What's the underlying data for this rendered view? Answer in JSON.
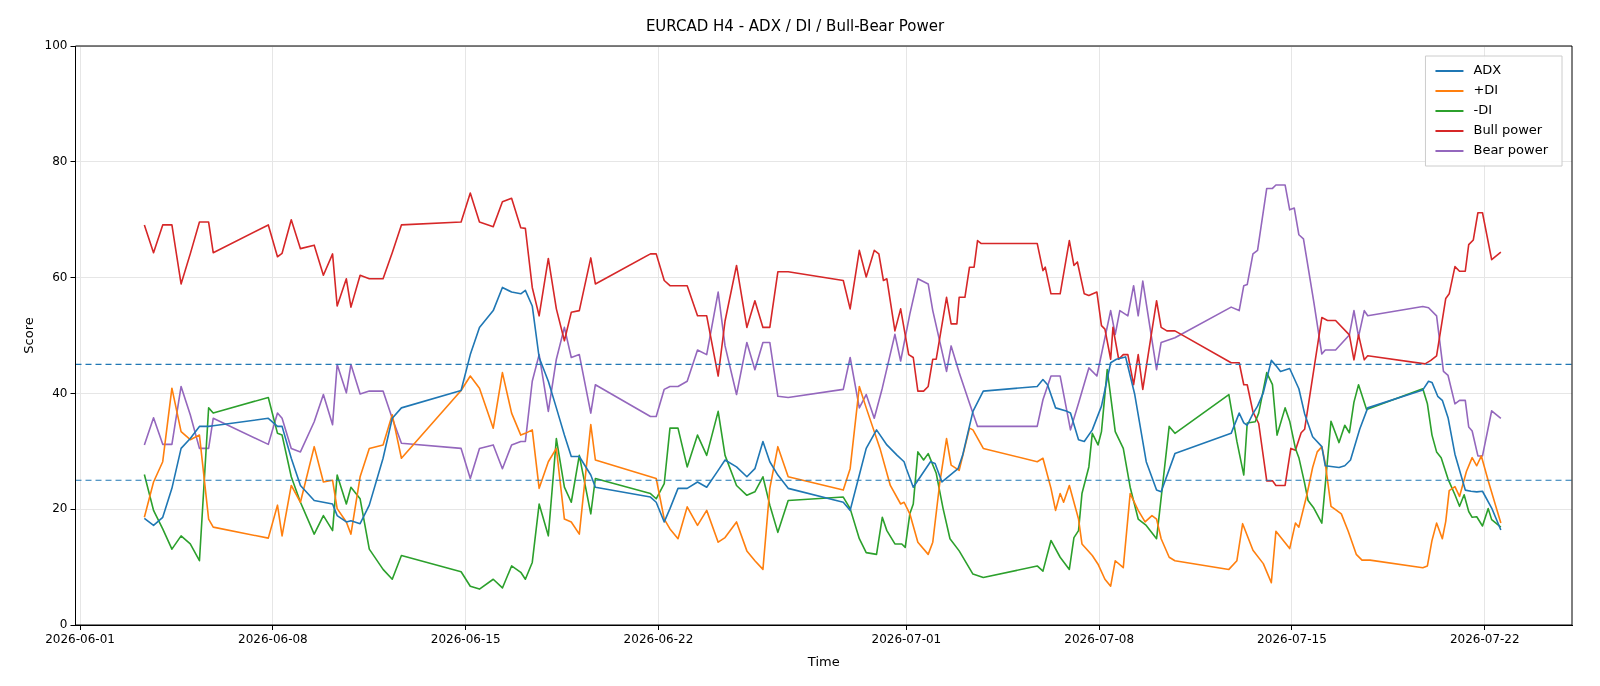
{
  "chart_data": {
    "type": "line",
    "title": "EURCAD H4 - ADX / DI / Bull-Bear Power",
    "xlabel": "Time",
    "ylabel": "Score",
    "xlim": [
      "2026-05-31T20:00",
      "2026-07-25T04:00"
    ],
    "xticks": [
      "2026-06-01",
      "2026-06-08",
      "2026-06-15",
      "2026-06-22",
      "2026-07-01",
      "2026-07-08",
      "2026-07-15",
      "2026-07-22"
    ],
    "ylim": [
      0,
      100
    ],
    "yticks": [
      0,
      20,
      40,
      60,
      80,
      100
    ],
    "grid": true,
    "legend": "top right",
    "ref_lines": [
      {
        "axis": "y",
        "value": 45,
        "color": "#1f77b4",
        "line_style": "dashed"
      },
      {
        "axis": "y",
        "value": 25,
        "color": "#1f77b4",
        "line_style": "dashed"
      }
    ],
    "series": [
      {
        "name": "ADX",
        "color": "#1f77b4",
        "x": [
          "2026-06-03T08:00",
          "2026-06-03T16:00",
          "2026-06-04T00:00",
          "2026-06-04T08:00",
          "2026-06-04T16:00",
          "2026-06-05T00:00",
          "2026-06-05T08:00",
          "2026-06-05T16:00",
          "2026-06-05T20:00",
          "2026-06-07T20:00",
          "2026-06-08T04:00",
          "2026-06-08T08:00",
          "2026-06-08T16:00",
          "2026-06-09T00:00",
          "2026-06-09T12:00",
          "2026-06-09T20:00",
          "2026-06-10T04:00",
          "2026-06-10T08:00",
          "2026-06-10T16:00",
          "2026-06-10T20:00",
          "2026-06-11T04:00",
          "2026-06-11T12:00",
          "2026-06-12T00:00",
          "2026-06-12T08:00",
          "2026-06-12T16:00",
          "2026-06-14T20:00",
          "2026-06-15T04:00",
          "2026-06-15T12:00",
          "2026-06-16T00:00",
          "2026-06-16T08:00",
          "2026-06-16T16:00",
          "2026-06-17T00:00",
          "2026-06-17T04:00",
          "2026-06-17T10:00",
          "2026-06-17T16:00",
          "2026-06-18T00:00",
          "2026-06-18T07:00",
          "2026-06-18T14:00",
          "2026-06-18T20:00",
          "2026-06-19T03:00",
          "2026-06-19T13:00",
          "2026-06-19T17:00",
          "2026-06-21T17:00",
          "2026-06-21T22:00",
          "2026-06-22T05:00",
          "2026-06-22T10:00",
          "2026-06-22T17:00",
          "2026-06-23T01:00",
          "2026-06-23T10:00",
          "2026-06-23T18:00",
          "2026-06-24T04:00",
          "2026-06-24T10:00",
          "2026-06-24T20:00",
          "2026-06-25T05:00",
          "2026-06-25T12:00",
          "2026-06-25T19:00",
          "2026-06-26T01:00",
          "2026-06-26T08:00",
          "2026-06-26T17:00",
          "2026-06-28T17:00",
          "2026-06-28T23:00",
          "2026-06-29T07:00",
          "2026-06-29T13:00",
          "2026-06-29T22:00",
          "2026-06-30T07:00",
          "2026-06-30T16:00",
          "2026-06-30T22:00",
          "2026-07-01T00:00",
          "2026-07-01T06:00",
          "2026-07-01T21:00",
          "2026-07-02T01:00",
          "2026-07-02T07:00",
          "2026-07-02T21:00",
          "2026-07-03T01:00",
          "2026-07-03T10:00",
          "2026-07-03T19:00",
          "2026-07-05T18:00",
          "2026-07-05T23:00",
          "2026-07-06T03:00",
          "2026-07-06T10:00",
          "2026-07-06T20:00",
          "2026-07-06T23:00",
          "2026-07-07T06:00",
          "2026-07-07T11:00",
          "2026-07-07T18:00",
          "2026-07-08T02:00",
          "2026-07-08T10:00",
          "2026-07-08T15:00",
          "2026-07-08T23:00",
          "2026-07-09T07:00",
          "2026-07-09T17:00",
          "2026-07-10T02:00",
          "2026-07-10T06:00",
          "2026-07-10T18:00",
          "2026-07-12T19:00",
          "2026-07-13T02:00",
          "2026-07-13T06:00",
          "2026-07-13T09:00",
          "2026-07-13T14:00",
          "2026-07-13T18:00",
          "2026-07-13T23:00",
          "2026-07-14T06:00",
          "2026-07-14T10:00",
          "2026-07-14T14:00",
          "2026-07-14T22:00",
          "2026-07-15T06:00",
          "2026-07-15T11:00",
          "2026-07-15T18:00",
          "2026-07-16T02:00",
          "2026-07-16T05:00",
          "2026-07-16T17:00",
          "2026-07-16T22:00",
          "2026-07-17T03:00",
          "2026-07-17T11:00",
          "2026-07-17T18:00",
          "2026-07-19T18:00",
          "2026-07-19T23:00",
          "2026-07-20T02:00",
          "2026-07-20T07:00",
          "2026-07-20T11:00",
          "2026-07-20T16:00",
          "2026-07-20T22:00",
          "2026-07-21T07:00",
          "2026-07-21T12:00",
          "2026-07-21T17:00",
          "2026-07-21T22:00",
          "2026-07-22T06:00",
          "2026-07-22T14:00"
        ],
        "values": [
          18.4,
          17.2,
          18.6,
          23.6,
          30.5,
          32.2,
          34.3,
          34.3,
          34.4,
          35.7,
          34.3,
          34.3,
          28.8,
          24.1,
          21.5,
          21.2,
          20.9,
          18.9,
          17.8,
          18.0,
          17.5,
          20.7,
          28.8,
          35.7,
          37.5,
          40.5,
          46.7,
          51.4,
          54.3,
          58.3,
          57.5,
          57.2,
          57.8,
          55.1,
          46.2,
          42.1,
          37.5,
          32.8,
          29.1,
          29.1,
          25.9,
          23.8,
          22.1,
          21.2,
          17.8,
          20.1,
          23.6,
          23.6,
          24.7,
          23.8,
          26.7,
          28.5,
          27.3,
          25.6,
          27.0,
          31.7,
          28.2,
          25.9,
          23.6,
          21.2,
          19.8,
          25.9,
          30.5,
          33.7,
          31.1,
          29.3,
          28.2,
          27.0,
          23.8,
          28.2,
          27.9,
          24.7,
          27.0,
          29.3,
          36.9,
          40.4,
          41.2,
          42.4,
          41.5,
          37.5,
          36.9,
          36.6,
          32.0,
          31.7,
          33.7,
          37.8,
          45.3,
          45.9,
          46.3,
          39.8,
          28.2,
          23.3,
          23.0,
          29.6,
          33.1,
          36.6,
          34.9,
          34.5,
          36.5,
          37.8,
          40.1,
          45.7,
          44.8,
          43.8,
          44.3,
          40.8,
          36.5,
          32.5,
          30.8,
          27.5,
          27.2,
          27.5,
          28.5,
          33.8,
          37.5,
          40.6,
          42.1,
          41.9,
          39.5,
          38.8,
          35.8,
          29.5,
          23.3,
          23.1,
          23.0,
          23.1,
          20.2,
          16.4
        ]
      },
      {
        "name": "+DI",
        "color": "#ff7f0e",
        "x": [
          "2026-06-03T08:00",
          "2026-06-03T16:00",
          "2026-06-04T00:00",
          "2026-06-04T08:00",
          "2026-06-04T16:00",
          "2026-06-05T00:00",
          "2026-06-05T08:00",
          "2026-06-05T16:00",
          "2026-06-05T20:00",
          "2026-06-07T20:00",
          "2026-06-08T04:00",
          "2026-06-08T08:00",
          "2026-06-08T16:00",
          "2026-06-09T00:00",
          "2026-06-09T12:00",
          "2026-06-09T20:00",
          "2026-06-10T04:00",
          "2026-06-10T08:00",
          "2026-06-10T16:00",
          "2026-06-10T20:00",
          "2026-06-11T04:00",
          "2026-06-11T12:00",
          "2026-06-12T00:00",
          "2026-06-12T08:00",
          "2026-06-12T16:00",
          "2026-06-14T20:00",
          "2026-06-15T04:00",
          "2026-06-15T12:00",
          "2026-06-16T00:00",
          "2026-06-16T08:00",
          "2026-06-16T16:00",
          "2026-06-17T00:00",
          "2026-06-17T04:00",
          "2026-06-17T10:00",
          "2026-06-17T16:00",
          "2026-06-18T00:00",
          "2026-06-18T07:00",
          "2026-06-18T14:00",
          "2026-06-18T20:00",
          "2026-06-19T03:00",
          "2026-06-19T13:00",
          "2026-06-19T17:00",
          "2026-06-21T17:00",
          "2026-06-21T22:00",
          "2026-06-22T05:00",
          "2026-06-22T10:00",
          "2026-06-22T17:00",
          "2026-06-23T01:00",
          "2026-06-23T10:00",
          "2026-06-23T18:00",
          "2026-06-24T04:00",
          "2026-06-24T10:00",
          "2026-06-24T20:00",
          "2026-06-25T05:00",
          "2026-06-25T12:00",
          "2026-06-25T19:00",
          "2026-06-26T01:00",
          "2026-06-26T08:00",
          "2026-06-26T17:00",
          "2026-06-28T17:00",
          "2026-06-28T23:00",
          "2026-06-29T07:00",
          "2026-06-29T13:00",
          "2026-06-30T01:00",
          "2026-06-30T10:00",
          "2026-06-30T19:00",
          "2026-06-30T22:00",
          "2026-07-01T03:00",
          "2026-07-01T10:00",
          "2026-07-01T19:00",
          "2026-07-01T23:00",
          "2026-07-02T05:00",
          "2026-07-02T11:00",
          "2026-07-02T15:00",
          "2026-07-02T22:00",
          "2026-07-03T07:00",
          "2026-07-03T10:00",
          "2026-07-03T19:00",
          "2026-07-05T18:00",
          "2026-07-05T23:00",
          "2026-07-06T06:00",
          "2026-07-06T10:00",
          "2026-07-06T14:00",
          "2026-07-06T17:00",
          "2026-07-06T22:00",
          "2026-07-07T06:00",
          "2026-07-07T09:00",
          "2026-07-07T18:00",
          "2026-07-07T23:00",
          "2026-07-08T05:00",
          "2026-07-08T10:00",
          "2026-07-08T14:00",
          "2026-07-08T21:00",
          "2026-07-09T03:00",
          "2026-07-09T10:00",
          "2026-07-09T16:00",
          "2026-07-09T22:00",
          "2026-07-10T02:00",
          "2026-07-10T06:00",
          "2026-07-10T13:00",
          "2026-07-10T18:00",
          "2026-07-12T17:00",
          "2026-07-13T00:00",
          "2026-07-13T05:00",
          "2026-07-13T14:00",
          "2026-07-13T23:00",
          "2026-07-14T06:00",
          "2026-07-14T10:00",
          "2026-07-14T22:00",
          "2026-07-15T03:00",
          "2026-07-15T06:00",
          "2026-07-15T13:00",
          "2026-07-15T18:00",
          "2026-07-15T22:00",
          "2026-07-16T02:00",
          "2026-07-16T05:00",
          "2026-07-16T10:00",
          "2026-07-16T19:00",
          "2026-07-17T01:00",
          "2026-07-17T08:00",
          "2026-07-17T13:00",
          "2026-07-17T20:00",
          "2026-07-19T18:00",
          "2026-07-19T22:00",
          "2026-07-20T02:00",
          "2026-07-20T06:00",
          "2026-07-20T11:00",
          "2026-07-20T14:00",
          "2026-07-20T17:00",
          "2026-07-20T22:00",
          "2026-07-21T02:00",
          "2026-07-21T08:00",
          "2026-07-21T13:00",
          "2026-07-21T17:00",
          "2026-07-21T21:00",
          "2026-07-22T03:00",
          "2026-07-22T14:00"
        ],
        "values": [
          18.6,
          24.7,
          28.2,
          40.9,
          33.4,
          32.0,
          32.8,
          18.3,
          16.9,
          15.0,
          20.7,
          15.4,
          24.1,
          21.2,
          30.8,
          24.7,
          25.0,
          20.1,
          17.8,
          15.7,
          25.6,
          30.5,
          31.1,
          36.3,
          28.8,
          40.5,
          43.0,
          40.9,
          34.0,
          43.6,
          36.6,
          32.8,
          33.1,
          33.7,
          23.6,
          28.2,
          30.5,
          18.3,
          17.8,
          15.7,
          34.6,
          28.5,
          25.6,
          25.3,
          18.3,
          16.6,
          14.9,
          20.4,
          17.2,
          19.8,
          14.3,
          15.1,
          17.8,
          12.8,
          11.1,
          9.6,
          23.6,
          30.8,
          25.6,
          23.3,
          27.0,
          41.2,
          37.5,
          30.5,
          24.1,
          20.9,
          21.2,
          19.2,
          14.3,
          12.2,
          14.3,
          24.4,
          32.2,
          27.6,
          26.7,
          34.0,
          33.7,
          30.5,
          28.2,
          28.8,
          23.6,
          19.8,
          22.7,
          21.2,
          24.1,
          18.3,
          14.0,
          12.0,
          10.5,
          7.9,
          6.7,
          11.1,
          9.9,
          22.7,
          19.8,
          17.8,
          18.9,
          18.3,
          14.9,
          11.7,
          11.1,
          9.6,
          11.1,
          17.5,
          12.9,
          10.6,
          7.3,
          16.2,
          13.2,
          17.6,
          16.9,
          22.5,
          27.2,
          29.9,
          30.8,
          27.9,
          20.5,
          19.2,
          16.2,
          12.2,
          11.2,
          11.2,
          9.9,
          10.2,
          14.6,
          17.6,
          14.9,
          17.9,
          23.2,
          23.9,
          22.2,
          26.5,
          28.9,
          27.5,
          29.2,
          24.9,
          17.6
        ]
      },
      {
        "name": "-DI",
        "color": "#2ca02c",
        "x": [
          "2026-06-03T08:00",
          "2026-06-03T16:00",
          "2026-06-04T00:00",
          "2026-06-04T08:00",
          "2026-06-04T16:00",
          "2026-06-05T00:00",
          "2026-06-05T08:00",
          "2026-06-05T16:00",
          "2026-06-05T20:00",
          "2026-06-07T20:00",
          "2026-06-08T04:00",
          "2026-06-08T08:00",
          "2026-06-08T16:00",
          "2026-06-09T00:00",
          "2026-06-09T12:00",
          "2026-06-09T20:00",
          "2026-06-10T04:00",
          "2026-06-10T08:00",
          "2026-06-10T16:00",
          "2026-06-10T20:00",
          "2026-06-11T04:00",
          "2026-06-11T12:00",
          "2026-06-12T00:00",
          "2026-06-12T08:00",
          "2026-06-12T16:00",
          "2026-06-14T20:00",
          "2026-06-15T04:00",
          "2026-06-15T12:00",
          "2026-06-16T00:00",
          "2026-06-16T08:00",
          "2026-06-16T16:00",
          "2026-06-17T00:00",
          "2026-06-17T04:00",
          "2026-06-17T10:00",
          "2026-06-17T16:00",
          "2026-06-18T00:00",
          "2026-06-18T07:00",
          "2026-06-18T14:00",
          "2026-06-18T20:00",
          "2026-06-19T03:00",
          "2026-06-19T13:00",
          "2026-06-19T17:00",
          "2026-06-21T17:00",
          "2026-06-21T22:00",
          "2026-06-22T05:00",
          "2026-06-22T10:00",
          "2026-06-22T17:00",
          "2026-06-23T01:00",
          "2026-06-23T10:00",
          "2026-06-23T18:00",
          "2026-06-24T04:00",
          "2026-06-24T10:00",
          "2026-06-24T20:00",
          "2026-06-25T05:00",
          "2026-06-25T12:00",
          "2026-06-25T19:00",
          "2026-06-26T01:00",
          "2026-06-26T08:00",
          "2026-06-26T17:00",
          "2026-06-28T17:00",
          "2026-06-28T23:00",
          "2026-06-29T07:00",
          "2026-06-29T13:00",
          "2026-06-29T22:00",
          "2026-06-30T03:00",
          "2026-06-30T07:00",
          "2026-06-30T14:00",
          "2026-06-30T20:00",
          "2026-06-30T23:00",
          "2026-07-01T03:00",
          "2026-07-01T06:00",
          "2026-07-01T10:00",
          "2026-07-01T15:00",
          "2026-07-01T19:00",
          "2026-07-02T02:00",
          "2026-07-02T08:00",
          "2026-07-02T14:00",
          "2026-07-02T22:00",
          "2026-07-03T10:00",
          "2026-07-03T19:00",
          "2026-07-05T18:00",
          "2026-07-05T23:00",
          "2026-07-06T06:00",
          "2026-07-06T14:00",
          "2026-07-06T22:00",
          "2026-07-07T02:00",
          "2026-07-07T06:00",
          "2026-07-07T09:00",
          "2026-07-07T15:00",
          "2026-07-07T18:00",
          "2026-07-07T23:00",
          "2026-07-08T02:00",
          "2026-07-08T07:00",
          "2026-07-08T14:00",
          "2026-07-08T21:00",
          "2026-07-09T03:00",
          "2026-07-09T10:00",
          "2026-07-09T17:00",
          "2026-07-10T02:00",
          "2026-07-10T13:00",
          "2026-07-10T18:00",
          "2026-07-12T17:00",
          "2026-07-13T00:00",
          "2026-07-13T06:00",
          "2026-07-13T09:00",
          "2026-07-13T16:00",
          "2026-07-13T19:00",
          "2026-07-14T02:00",
          "2026-07-14T07:00",
          "2026-07-14T11:00",
          "2026-07-14T18:00",
          "2026-07-14T22:00",
          "2026-07-15T03:00",
          "2026-07-15T06:00",
          "2026-07-15T11:00",
          "2026-07-15T14:00",
          "2026-07-15T19:00",
          "2026-07-16T02:00",
          "2026-07-16T10:00",
          "2026-07-16T17:00",
          "2026-07-16T22:00",
          "2026-07-17T02:00",
          "2026-07-17T06:00",
          "2026-07-17T10:00",
          "2026-07-17T17:00",
          "2026-07-19T18:00",
          "2026-07-19T22:00",
          "2026-07-20T02:00",
          "2026-07-20T06:00",
          "2026-07-20T10:00",
          "2026-07-20T16:00",
          "2026-07-20T22:00",
          "2026-07-21T02:00",
          "2026-07-21T06:00",
          "2026-07-21T10:00",
          "2026-07-21T13:00",
          "2026-07-21T17:00",
          "2026-07-21T22:00",
          "2026-07-22T03:00",
          "2026-07-22T06:00",
          "2026-07-22T14:00"
        ],
        "values": [
          26.0,
          19.8,
          16.6,
          13.1,
          15.4,
          14.0,
          11.1,
          37.5,
          36.6,
          39.3,
          33.1,
          32.8,
          25.6,
          21.2,
          15.7,
          18.9,
          16.3,
          25.9,
          20.9,
          23.8,
          21.8,
          13.1,
          9.6,
          7.9,
          12.0,
          9.2,
          6.7,
          6.2,
          7.9,
          6.4,
          10.2,
          9.1,
          7.9,
          10.8,
          20.9,
          15.4,
          32.2,
          23.8,
          21.2,
          29.3,
          19.2,
          25.3,
          22.7,
          21.8,
          24.4,
          34.0,
          34.0,
          27.3,
          32.8,
          29.3,
          36.9,
          29.3,
          24.1,
          22.4,
          23.0,
          25.6,
          20.7,
          16.0,
          21.5,
          22.1,
          20.1,
          14.9,
          12.5,
          12.2,
          18.6,
          16.3,
          14.0,
          14.0,
          13.4,
          19.2,
          20.9,
          29.9,
          28.5,
          29.6,
          26.2,
          20.1,
          14.9,
          12.8,
          8.8,
          8.2,
          10.2,
          9.3,
          14.6,
          11.7,
          9.6,
          15.1,
          16.3,
          22.7,
          27.3,
          33.1,
          31.1,
          33.4,
          44.1,
          33.4,
          30.5,
          23.8,
          18.3,
          17.2,
          14.9,
          34.3,
          33.1,
          39.8,
          31.7,
          25.9,
          34.9,
          35.1,
          36.6,
          43.6,
          41.5,
          32.8,
          37.5,
          35.2,
          30.5,
          28.9,
          24.5,
          21.5,
          20.2,
          17.6,
          35.2,
          31.5,
          34.5,
          33.2,
          38.5,
          41.5,
          37.2,
          40.8,
          38.2,
          32.8,
          29.9,
          28.9,
          25.2,
          22.5,
          20.5,
          22.5,
          19.6,
          18.6,
          18.7,
          17.1,
          20.1,
          18.2,
          16.9
        ]
      },
      {
        "name": "Bull power",
        "color": "#d62728",
        "x": [
          "2026-06-03T08:00",
          "2026-06-03T16:00",
          "2026-06-04T00:00",
          "2026-06-04T08:00",
          "2026-06-04T16:00",
          "2026-06-05T00:00",
          "2026-06-05T08:00",
          "2026-06-05T16:00",
          "2026-06-05T20:00",
          "2026-06-07T20:00",
          "2026-06-08T04:00",
          "2026-06-08T08:00",
          "2026-06-08T16:00",
          "2026-06-09T00:00",
          "2026-06-09T12:00",
          "2026-06-09T20:00",
          "2026-06-10T04:00",
          "2026-06-10T08:00",
          "2026-06-10T16:00",
          "2026-06-10T20:00",
          "2026-06-11T04:00",
          "2026-06-11T12:00",
          "2026-06-12T00:00",
          "2026-06-12T08:00",
          "2026-06-12T16:00",
          "2026-06-14T20:00",
          "2026-06-15T04:00",
          "2026-06-15T12:00",
          "2026-06-16T00:00",
          "2026-06-16T08:00",
          "2026-06-16T16:00",
          "2026-06-17T00:00",
          "2026-06-17T04:00",
          "2026-06-17T10:00",
          "2026-06-17T16:00",
          "2026-06-18T00:00",
          "2026-06-18T07:00",
          "2026-06-18T14:00",
          "2026-06-18T20:00",
          "2026-06-19T03:00",
          "2026-06-19T13:00",
          "2026-06-19T17:00",
          "2026-06-21T17:00",
          "2026-06-21T22:00",
          "2026-06-22T05:00",
          "2026-06-22T10:00",
          "2026-06-22T17:00",
          "2026-06-23T01:00",
          "2026-06-23T10:00",
          "2026-06-23T18:00",
          "2026-06-24T04:00",
          "2026-06-24T10:00",
          "2026-06-24T20:00",
          "2026-06-25T05:00",
          "2026-06-25T12:00",
          "2026-06-25T19:00",
          "2026-06-26T01:00",
          "2026-06-26T08:00",
          "2026-06-26T17:00",
          "2026-06-28T17:00",
          "2026-06-28T23:00",
          "2026-06-29T07:00",
          "2026-06-29T13:00",
          "2026-06-29T20:00",
          "2026-06-30T00:00",
          "2026-06-30T04:00",
          "2026-06-30T07:00",
          "2026-06-30T14:00",
          "2026-06-30T19:00",
          "2026-07-01T02:00",
          "2026-07-01T06:00",
          "2026-07-01T10:00",
          "2026-07-01T15:00",
          "2026-07-01T19:00",
          "2026-07-01T23:00",
          "2026-07-02T02:00",
          "2026-07-02T11:00",
          "2026-07-02T15:00",
          "2026-07-02T20:00",
          "2026-07-02T22:00",
          "2026-07-03T03:00",
          "2026-07-03T07:00",
          "2026-07-03T11:00",
          "2026-07-03T14:00",
          "2026-07-03T17:00",
          "2026-07-05T18:00",
          "2026-07-05T23:00",
          "2026-07-06T01:00",
          "2026-07-06T06:00",
          "2026-07-06T14:00",
          "2026-07-06T22:00",
          "2026-07-07T02:00",
          "2026-07-07T05:00",
          "2026-07-07T11:00",
          "2026-07-07T15:00",
          "2026-07-07T22:00",
          "2026-07-08T02:00",
          "2026-07-08T05:00",
          "2026-07-08T10:00",
          "2026-07-08T12:00",
          "2026-07-08T17:00",
          "2026-07-08T21:00",
          "2026-07-09T01:00",
          "2026-07-09T06:00",
          "2026-07-09T10:00",
          "2026-07-09T14:00",
          "2026-07-10T02:00",
          "2026-07-10T06:00",
          "2026-07-10T11:00",
          "2026-07-10T18:00",
          "2026-07-12T19:00",
          "2026-07-13T02:00",
          "2026-07-13T06:00",
          "2026-07-13T09:00",
          "2026-07-13T14:00",
          "2026-07-13T19:00",
          "2026-07-14T02:00",
          "2026-07-14T07:00",
          "2026-07-14T10:00",
          "2026-07-14T18:00",
          "2026-07-14T23:00",
          "2026-07-15T03:00",
          "2026-07-15T08:00",
          "2026-07-15T11:00",
          "2026-07-16T02:00",
          "2026-07-16T07:00",
          "2026-07-16T14:00",
          "2026-07-17T02:00",
          "2026-07-17T06:00",
          "2026-07-17T10:00",
          "2026-07-17T15:00",
          "2026-07-17T18:00",
          "2026-07-19T20:00",
          "2026-07-20T01:00",
          "2026-07-20T06:00",
          "2026-07-20T14:00",
          "2026-07-20T17:00",
          "2026-07-20T22:00",
          "2026-07-21T02:00",
          "2026-07-21T07:00",
          "2026-07-21T10:00",
          "2026-07-21T14:00",
          "2026-07-21T18:00",
          "2026-07-21T22:00",
          "2026-07-22T06:00",
          "2026-07-22T14:00"
        ],
        "values": [
          69.1,
          64.3,
          69.1,
          69.1,
          58.9,
          64.1,
          69.6,
          69.6,
          64.3,
          69.1,
          63.6,
          64.2,
          70.0,
          65.0,
          65.6,
          60.4,
          64.1,
          55.1,
          59.8,
          54.9,
          60.4,
          59.8,
          59.8,
          64.3,
          69.1,
          69.6,
          74.6,
          69.6,
          68.8,
          73.1,
          73.7,
          68.6,
          68.5,
          58.3,
          53.4,
          63.3,
          54.6,
          49.1,
          54.0,
          54.3,
          63.4,
          58.9,
          64.1,
          64.1,
          59.5,
          58.6,
          58.6,
          58.6,
          53.4,
          53.4,
          43.0,
          52.5,
          62.1,
          51.4,
          56.0,
          51.4,
          51.4,
          61.0,
          61.0,
          59.5,
          54.6,
          64.7,
          60.1,
          64.7,
          64.1,
          59.5,
          59.8,
          50.8,
          54.6,
          46.7,
          46.2,
          40.4,
          40.4,
          41.2,
          45.9,
          45.9,
          56.6,
          52.0,
          52.0,
          56.6,
          56.6,
          61.8,
          61.8,
          66.4,
          65.9,
          65.9,
          61.2,
          61.8,
          57.2,
          57.2,
          66.4,
          62.1,
          62.7,
          57.2,
          56.9,
          57.5,
          51.7,
          51.1,
          45.9,
          51.4,
          45.9,
          46.7,
          46.7,
          41.5,
          46.7,
          40.7,
          56.0,
          51.4,
          50.8,
          50.8,
          45.3,
          45.3,
          41.5,
          41.5,
          36.8,
          34.8,
          24.9,
          24.9,
          24.1,
          24.1,
          30.5,
          30.2,
          33.2,
          33.8,
          53.1,
          52.6,
          52.6,
          50.1,
          45.8,
          50.1,
          45.8,
          46.5,
          45.1,
          45.7,
          46.5,
          56.4,
          57.2,
          61.9,
          61.1,
          61.1,
          65.7,
          66.5,
          71.2,
          71.2,
          63.1,
          64.4
        ]
      },
      {
        "name": "Bear power",
        "color": "#9467bd",
        "x": [
          "2026-06-03T08:00",
          "2026-06-03T16:00",
          "2026-06-04T00:00",
          "2026-06-04T08:00",
          "2026-06-04T16:00",
          "2026-06-05T00:00",
          "2026-06-05T08:00",
          "2026-06-05T16:00",
          "2026-06-05T20:00",
          "2026-06-07T20:00",
          "2026-06-08T04:00",
          "2026-06-08T08:00",
          "2026-06-08T16:00",
          "2026-06-09T00:00",
          "2026-06-09T12:00",
          "2026-06-09T20:00",
          "2026-06-10T04:00",
          "2026-06-10T08:00",
          "2026-06-10T16:00",
          "2026-06-10T20:00",
          "2026-06-11T04:00",
          "2026-06-11T12:00",
          "2026-06-12T00:00",
          "2026-06-12T08:00",
          "2026-06-12T16:00",
          "2026-06-14T20:00",
          "2026-06-15T04:00",
          "2026-06-15T12:00",
          "2026-06-16T00:00",
          "2026-06-16T08:00",
          "2026-06-16T16:00",
          "2026-06-17T00:00",
          "2026-06-17T04:00",
          "2026-06-17T10:00",
          "2026-06-17T16:00",
          "2026-06-18T00:00",
          "2026-06-18T07:00",
          "2026-06-18T14:00",
          "2026-06-18T20:00",
          "2026-06-19T03:00",
          "2026-06-19T13:00",
          "2026-06-19T17:00",
          "2026-06-21T17:00",
          "2026-06-21T22:00",
          "2026-06-22T05:00",
          "2026-06-22T10:00",
          "2026-06-22T17:00",
          "2026-06-23T01:00",
          "2026-06-23T10:00",
          "2026-06-23T18:00",
          "2026-06-24T04:00",
          "2026-06-24T10:00",
          "2026-06-24T20:00",
          "2026-06-25T05:00",
          "2026-06-25T12:00",
          "2026-06-25T19:00",
          "2026-06-26T01:00",
          "2026-06-26T08:00",
          "2026-06-26T17:00",
          "2026-06-28T17:00",
          "2026-06-28T23:00",
          "2026-06-29T07:00",
          "2026-06-29T13:00",
          "2026-06-29T20:00",
          "2026-06-30T03:00",
          "2026-06-30T14:00",
          "2026-06-30T19:00",
          "2026-07-01T03:00",
          "2026-07-01T10:00",
          "2026-07-01T19:00",
          "2026-07-01T23:00",
          "2026-07-02T11:00",
          "2026-07-02T15:00",
          "2026-07-02T22:00",
          "2026-07-03T07:00",
          "2026-07-03T14:00",
          "2026-07-05T18:00",
          "2026-07-05T23:00",
          "2026-07-06T06:00",
          "2026-07-06T14:00",
          "2026-07-06T23:00",
          "2026-07-07T06:00",
          "2026-07-07T15:00",
          "2026-07-07T22:00",
          "2026-07-08T10:00",
          "2026-07-08T14:00",
          "2026-07-08T18:00",
          "2026-07-09T01:00",
          "2026-07-09T06:00",
          "2026-07-09T10:00",
          "2026-07-09T14:00",
          "2026-07-10T02:00",
          "2026-07-10T06:00",
          "2026-07-10T18:00",
          "2026-07-12T19:00",
          "2026-07-13T02:00",
          "2026-07-13T06:00",
          "2026-07-13T09:00",
          "2026-07-13T14:00",
          "2026-07-13T18:00",
          "2026-07-14T02:00",
          "2026-07-14T07:00",
          "2026-07-14T10:00",
          "2026-07-14T18:00",
          "2026-07-14T22:00",
          "2026-07-15T02:00",
          "2026-07-15T06:00",
          "2026-07-15T10:00",
          "2026-07-15T19:00",
          "2026-07-16T02:00",
          "2026-07-16T05:00",
          "2026-07-16T14:00",
          "2026-07-17T02:00",
          "2026-07-17T06:00",
          "2026-07-17T10:00",
          "2026-07-17T15:00",
          "2026-07-17T18:00",
          "2026-07-19T18:00",
          "2026-07-19T23:00",
          "2026-07-20T06:00",
          "2026-07-20T12:00",
          "2026-07-20T16:00",
          "2026-07-20T22:00",
          "2026-07-21T02:00",
          "2026-07-21T07:00",
          "2026-07-21T10:00",
          "2026-07-21T13:00",
          "2026-07-21T18:00",
          "2026-07-21T22:00",
          "2026-07-22T06:00",
          "2026-07-22T14:00"
        ],
        "values": [
          31.1,
          35.8,
          31.2,
          31.2,
          41.2,
          36.3,
          30.5,
          30.5,
          35.7,
          31.2,
          36.6,
          35.7,
          30.5,
          29.9,
          35.1,
          39.8,
          34.6,
          45.0,
          40.1,
          45.0,
          39.9,
          40.4,
          40.4,
          35.7,
          31.4,
          30.5,
          25.3,
          30.5,
          31.1,
          27.0,
          31.1,
          31.7,
          31.7,
          42.1,
          46.7,
          36.9,
          45.9,
          51.4,
          46.2,
          46.7,
          36.6,
          41.5,
          36.0,
          36.0,
          40.7,
          41.2,
          41.2,
          42.1,
          47.5,
          46.7,
          57.5,
          48.2,
          39.8,
          48.8,
          44.1,
          48.8,
          48.8,
          39.5,
          39.3,
          40.7,
          46.2,
          37.5,
          39.8,
          35.7,
          40.9,
          50.2,
          45.6,
          53.7,
          59.8,
          58.9,
          54.3,
          43.8,
          48.2,
          43.6,
          38.3,
          34.3,
          34.3,
          38.9,
          43.0,
          43.0,
          33.7,
          38.3,
          44.4,
          43.0,
          54.3,
          50.2,
          54.3,
          53.4,
          58.6,
          53.4,
          59.4,
          44.1,
          48.8,
          49.6,
          54.9,
          54.3,
          58.6,
          58.8,
          64.1,
          64.7,
          75.4,
          75.4,
          76.0,
          76.0,
          71.7,
          72.0,
          67.4,
          66.7,
          55.8,
          46.8,
          47.5,
          47.5,
          50.1,
          54.3,
          49.8,
          54.3,
          53.4,
          55.0,
          54.8,
          53.4,
          43.8,
          43.1,
          38.2,
          38.8,
          38.8,
          34.2,
          33.5,
          29.2,
          29.2,
          37.0,
          35.7
        ]
      }
    ]
  }
}
